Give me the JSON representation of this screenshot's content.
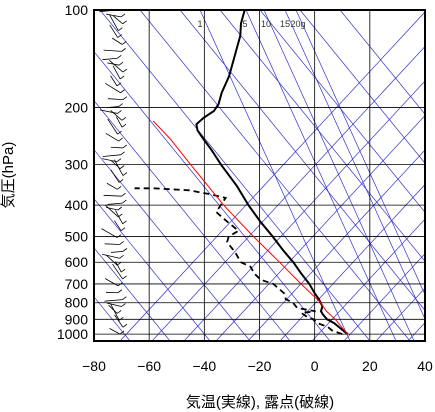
{
  "chart_data": {
    "type": "line",
    "xlabel": "気温(実線), 露点(破線)",
    "ylabel": "気圧(hPa)",
    "xlim": [
      -80,
      40
    ],
    "ylim": [
      1050,
      100
    ],
    "y_scale": "log",
    "x_ticks": [
      -80,
      -60,
      -40,
      -20,
      0,
      20,
      40
    ],
    "y_ticks": [
      100,
      200,
      300,
      400,
      500,
      600,
      700,
      800,
      900,
      1000
    ],
    "mixing_ratio_labels": [
      "1",
      "5",
      "10",
      "15",
      "20g"
    ],
    "colors": {
      "temperature": "#000000",
      "dewpoint": "#000000",
      "parcel": "#ff0000",
      "guides": "#3333cc",
      "grid": "#000000"
    },
    "series": [
      {
        "name": "temperature",
        "style": "solid",
        "points": [
          [
            1000,
            12
          ],
          [
            975,
            10
          ],
          [
            950,
            8
          ],
          [
            925,
            6
          ],
          [
            900,
            3
          ],
          [
            870,
            1
          ],
          [
            850,
            0
          ],
          [
            820,
            0
          ],
          [
            800,
            -1
          ],
          [
            780,
            -2
          ],
          [
            750,
            -4
          ],
          [
            700,
            -7
          ],
          [
            650,
            -11
          ],
          [
            600,
            -15
          ],
          [
            550,
            -20
          ],
          [
            500,
            -25
          ],
          [
            450,
            -31
          ],
          [
            400,
            -37
          ],
          [
            350,
            -43
          ],
          [
            300,
            -51
          ],
          [
            270,
            -56
          ],
          [
            250,
            -60
          ],
          [
            235,
            -63
          ],
          [
            225,
            -64
          ],
          [
            215,
            -62
          ],
          [
            205,
            -59
          ],
          [
            195,
            -58
          ],
          [
            180,
            -58
          ],
          [
            160,
            -57
          ],
          [
            140,
            -57
          ],
          [
            120,
            -57
          ],
          [
            110,
            -58
          ],
          [
            100,
            -58
          ]
        ]
      },
      {
        "name": "dewpoint",
        "style": "dashed",
        "points": [
          [
            1000,
            10
          ],
          [
            975,
            6
          ],
          [
            950,
            4
          ],
          [
            925,
            0
          ],
          [
            900,
            -2
          ],
          [
            880,
            -5
          ],
          [
            860,
            -7
          ],
          [
            850,
            -2
          ],
          [
            830,
            -9
          ],
          [
            800,
            -11
          ],
          [
            780,
            -14
          ],
          [
            750,
            -15
          ],
          [
            720,
            -18
          ],
          [
            700,
            -20
          ],
          [
            680,
            -25
          ],
          [
            650,
            -28
          ],
          [
            620,
            -30
          ],
          [
            600,
            -34
          ],
          [
            560,
            -37
          ],
          [
            520,
            -41
          ],
          [
            500,
            -41
          ],
          [
            480,
            -38
          ],
          [
            450,
            -43
          ],
          [
            420,
            -48
          ],
          [
            400,
            -47
          ],
          [
            380,
            -46
          ],
          [
            370,
            -52
          ],
          [
            360,
            -60
          ],
          [
            355,
            -73
          ],
          [
            355,
            -80
          ]
        ]
      },
      {
        "name": "parcel",
        "style": "solid-red",
        "points": [
          [
            1000,
            12
          ],
          [
            950,
            9
          ],
          [
            900,
            6
          ],
          [
            850,
            2
          ],
          [
            800,
            -1
          ],
          [
            700,
            -10
          ],
          [
            600,
            -20
          ],
          [
            500,
            -32
          ],
          [
            400,
            -46
          ],
          [
            300,
            -62
          ],
          [
            250,
            -72
          ],
          [
            220,
            -80
          ]
        ]
      }
    ]
  }
}
